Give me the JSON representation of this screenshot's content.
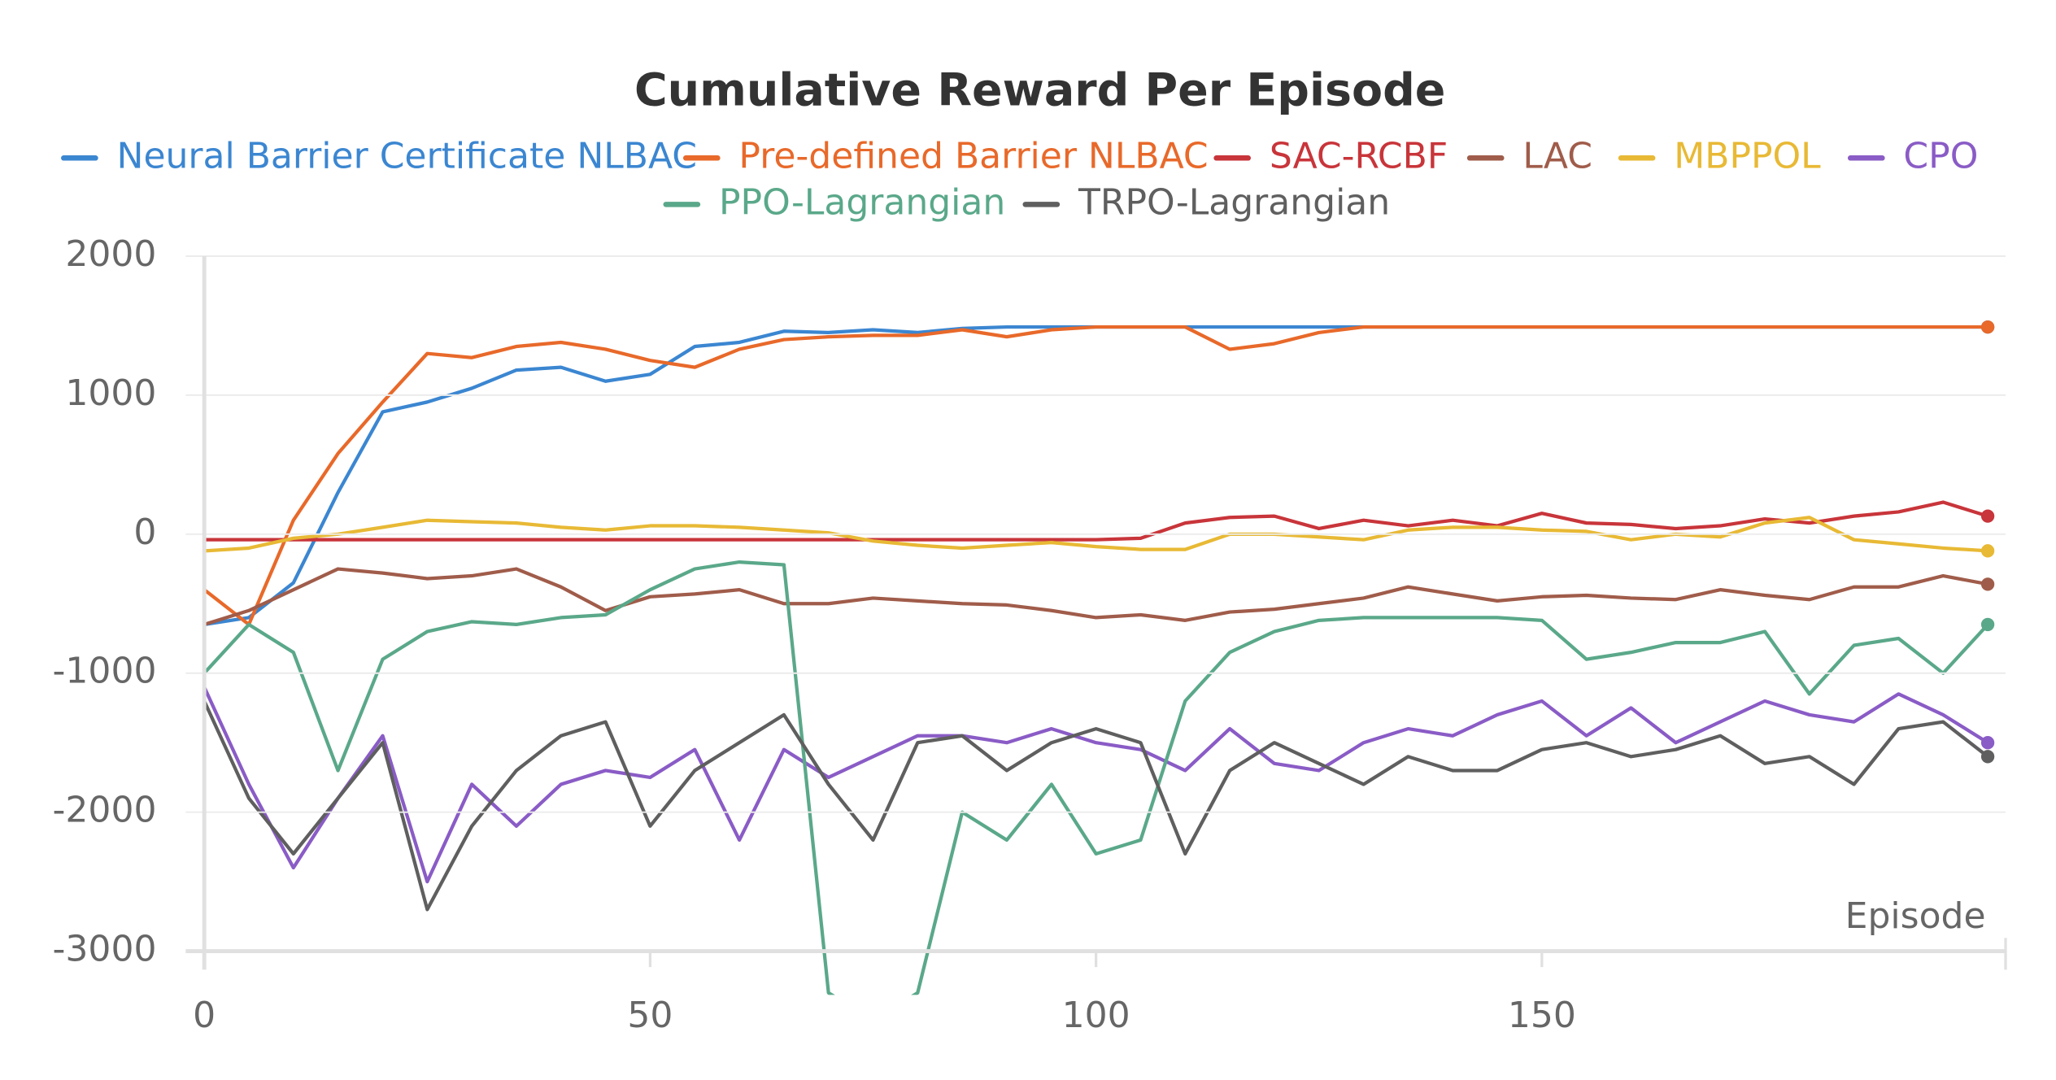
{
  "chart_data": {
    "type": "line",
    "title": "Cumulative Reward Per Episode",
    "x_label": "Episode",
    "x": [
      0,
      5,
      10,
      15,
      20,
      25,
      30,
      35,
      40,
      45,
      50,
      55,
      60,
      65,
      70,
      75,
      80,
      85,
      90,
      95,
      100,
      105,
      110,
      115,
      120,
      125,
      130,
      135,
      140,
      145,
      150,
      155,
      160,
      165,
      170,
      175,
      180,
      185,
      190,
      195,
      200
    ],
    "xlim": [
      0,
      202
    ],
    "xticks": [
      0,
      50,
      100,
      150
    ],
    "ylim": [
      -3000,
      2000
    ],
    "yticks": [
      -3000,
      -2000,
      -1000,
      0,
      1000,
      2000
    ],
    "grid": true,
    "series": [
      {
        "name": "Neural Barrier Certificate NLBAC",
        "color": "#3b86d1",
        "values": [
          -650,
          -600,
          -350,
          300,
          880,
          950,
          1050,
          1180,
          1200,
          1100,
          1150,
          1350,
          1380,
          1460,
          1450,
          1470,
          1450,
          1480,
          1490,
          1490,
          1490,
          1490,
          1490,
          1490,
          1490,
          1490,
          1490,
          1490,
          1490,
          1490,
          1490,
          1490,
          1490,
          1490,
          1490,
          1490,
          1490,
          1490,
          1490,
          1490,
          1490
        ]
      },
      {
        "name": "Pre-defined Barrier NLBAC",
        "color": "#e8692a",
        "values": [
          -400,
          -650,
          100,
          580,
          950,
          1300,
          1270,
          1350,
          1380,
          1330,
          1250,
          1200,
          1330,
          1400,
          1420,
          1430,
          1430,
          1470,
          1420,
          1470,
          1490,
          1490,
          1490,
          1330,
          1370,
          1450,
          1490,
          1490,
          1490,
          1490,
          1490,
          1490,
          1490,
          1490,
          1490,
          1490,
          1490,
          1490,
          1490,
          1490,
          1490
        ]
      },
      {
        "name": "SAC-RCBF",
        "color": "#c8353a",
        "values": [
          -40,
          -40,
          -40,
          -40,
          -40,
          -40,
          -40,
          -40,
          -40,
          -40,
          -40,
          -40,
          -40,
          -40,
          -40,
          -40,
          -40,
          -40,
          -40,
          -40,
          -40,
          -30,
          80,
          120,
          130,
          40,
          100,
          60,
          100,
          60,
          150,
          80,
          70,
          40,
          60,
          110,
          80,
          130,
          160,
          230,
          130
        ]
      },
      {
        "name": "LAC",
        "color": "#a05c4a",
        "values": [
          -650,
          -550,
          -400,
          -250,
          -280,
          -320,
          -300,
          -250,
          -380,
          -550,
          -450,
          -430,
          -400,
          -500,
          -500,
          -460,
          -480,
          -500,
          -510,
          -550,
          -600,
          -580,
          -620,
          -560,
          -540,
          -500,
          -460,
          -380,
          -430,
          -480,
          -450,
          -440,
          -460,
          -470,
          -400,
          -440,
          -470,
          -380,
          -380,
          -300,
          -360
        ]
      },
      {
        "name": "MBPPOL",
        "color": "#e8b935",
        "values": [
          -120,
          -100,
          -30,
          0,
          50,
          100,
          90,
          80,
          50,
          30,
          60,
          60,
          50,
          30,
          10,
          -50,
          -80,
          -100,
          -80,
          -60,
          -90,
          -110,
          -110,
          0,
          0,
          -20,
          -40,
          30,
          50,
          50,
          30,
          20,
          -40,
          0,
          -20,
          80,
          120,
          -40,
          -70,
          -100,
          -120
        ]
      },
      {
        "name": "CPO",
        "color": "#8a5cc6",
        "values": [
          -1100,
          -1800,
          -2400,
          -1900,
          -1450,
          -2500,
          -1800,
          -2100,
          -1800,
          -1700,
          -1750,
          -1550,
          -2200,
          -1550,
          -1750,
          -1600,
          -1450,
          -1450,
          -1500,
          -1400,
          -1500,
          -1550,
          -1700,
          -1400,
          -1650,
          -1700,
          -1500,
          -1400,
          -1450,
          -1300,
          -1200,
          -1450,
          -1250,
          -1500,
          -1350,
          -1200,
          -1300,
          -1350,
          -1150,
          -1300,
          -1500
        ]
      },
      {
        "name": "PPO-Lagrangian",
        "color": "#5aa88a",
        "values": [
          -1000,
          -650,
          -850,
          -1700,
          -900,
          -700,
          -630,
          -650,
          -600,
          -580,
          -400,
          -250,
          -200,
          -220,
          -3300,
          -3500,
          -3300,
          -2000,
          -2200,
          -1800,
          -2300,
          -2200,
          -1200,
          -850,
          -700,
          -620,
          -600,
          -600,
          -600,
          -600,
          -620,
          -900,
          -850,
          -780,
          -780,
          -700,
          -1150,
          -800,
          -750,
          -1000,
          -650
        ]
      },
      {
        "name": "TRPO-Lagrangian",
        "color": "#5f5f5f",
        "values": [
          -1200,
          -1900,
          -2300,
          -1900,
          -1500,
          -2700,
          -2100,
          -1700,
          -1450,
          -1350,
          -2100,
          -1700,
          -1500,
          -1300,
          -1800,
          -2200,
          -1500,
          -1450,
          -1700,
          -1500,
          -1400,
          -1500,
          -2300,
          -1700,
          -1500,
          -1650,
          -1800,
          -1600,
          -1700,
          -1700,
          -1550,
          -1500,
          -1600,
          -1550,
          -1450,
          -1650,
          -1600,
          -1800,
          -1400,
          -1350,
          -1600
        ]
      }
    ]
  }
}
